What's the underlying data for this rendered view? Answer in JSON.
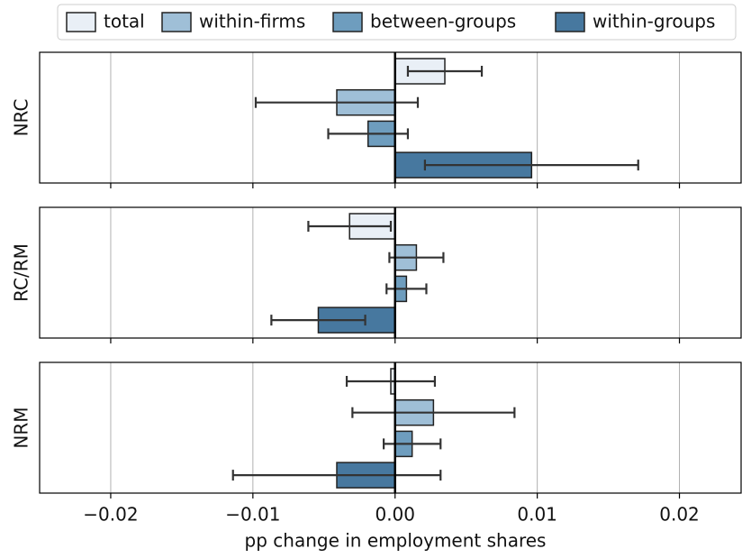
{
  "chart_data": {
    "type": "bar",
    "orientation": "horizontal",
    "xlabel": "pp change in employment shares",
    "panels": [
      "NRC",
      "RC/RM",
      "NRM"
    ],
    "xlim": [
      -0.025,
      0.0244
    ],
    "xticks": [
      {
        "value": -0.02,
        "label": "−0.02"
      },
      {
        "value": -0.01,
        "label": "−0.01"
      },
      {
        "value": 0,
        "label": "0.00"
      },
      0.01,
      0.02
    ],
    "grid": true,
    "series": [
      {
        "name": "total",
        "color": "#e9eff6",
        "values": [
          0.0035,
          -0.0032,
          -0.0003
        ],
        "errors": [
          0.0026,
          0.0029,
          0.0031
        ]
      },
      {
        "name": "within-firms",
        "color": "#9fbfd7",
        "values": [
          -0.0041,
          0.0015,
          0.0027
        ],
        "errors": [
          0.0057,
          0.0019,
          0.0057
        ]
      },
      {
        "name": "between-groups",
        "color": "#6e9dbe",
        "values": [
          -0.0019,
          0.0008,
          0.0012
        ],
        "errors": [
          0.0028,
          0.0014,
          0.002
        ]
      },
      {
        "name": "within-groups",
        "color": "#47789f",
        "values": [
          0.0096,
          -0.0054,
          -0.0041
        ],
        "errors": [
          0.0075,
          0.0033,
          0.0073
        ]
      }
    ]
  }
}
